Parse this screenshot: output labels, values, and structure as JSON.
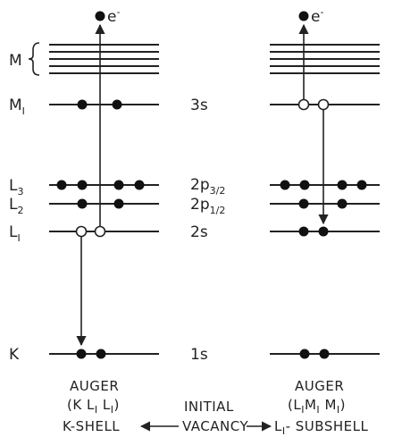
{
  "electron_label": {
    "main": "e",
    "sup": "-"
  },
  "shells": {
    "M": {
      "main": "M",
      "sub": ""
    },
    "M1": {
      "main": "M",
      "sub": "I"
    },
    "L3": {
      "main": "L",
      "sub": "3"
    },
    "L2": {
      "main": "L",
      "sub": "2"
    },
    "L1": {
      "main": "L",
      "sub": "I"
    },
    "K": {
      "main": "K",
      "sub": ""
    }
  },
  "orbitals": {
    "s3": {
      "main": "3s",
      "sub": ""
    },
    "p32": {
      "main": "2p",
      "sub": "3/2"
    },
    "p12": {
      "main": "2p",
      "sub": "1/2"
    },
    "s2": {
      "main": "2s",
      "sub": ""
    },
    "s1": {
      "main": "1s",
      "sub": ""
    }
  },
  "left_caption": {
    "title": "AUGER",
    "paren_open": "(K L",
    "sub1": "I",
    "mid": " L",
    "sub2": "I",
    "paren_close": ")",
    "shell": "K-SHELL"
  },
  "right_caption": {
    "title": "AUGER",
    "paren_open": "(L",
    "sub1": "I",
    "mid": "M",
    "sub2": "I",
    "mid2": " M",
    "sub3": "I",
    "paren_close": ")",
    "shell_main": "L",
    "shell_sub": "I",
    "shell_rest": "- SUBSHELL"
  },
  "center_caption": {
    "line1": "INITIAL",
    "line2": "VACANCY"
  }
}
